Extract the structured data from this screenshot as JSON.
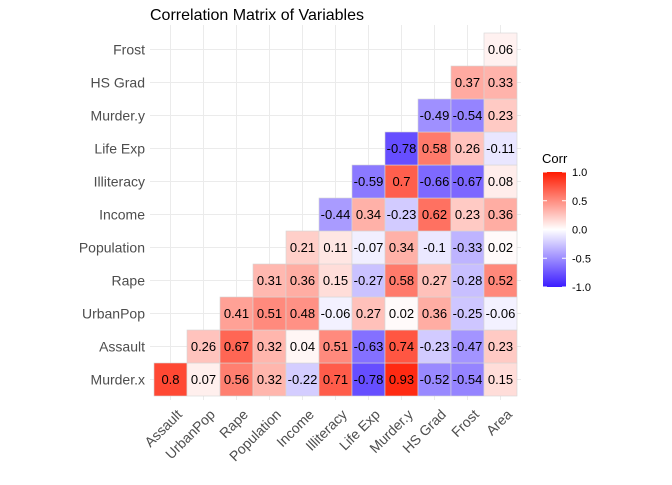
{
  "chart_data": {
    "type": "heatmap",
    "title": "Correlation Matrix of Variables",
    "xlabel": "",
    "ylabel": "",
    "x_categories": [
      "Assault",
      "UrbanPop",
      "Rape",
      "Population",
      "Income",
      "Illiteracy",
      "Life Exp",
      "Murder.y",
      "HS Grad",
      "Frost",
      "Area"
    ],
    "y_categories": [
      "Murder.x",
      "Assault",
      "UrbanPop",
      "Rape",
      "Population",
      "Income",
      "Illiteracy",
      "Life Exp",
      "Murder.y",
      "HS Grad",
      "Frost"
    ],
    "value_rows": [
      [
        0.8,
        0.07,
        0.56,
        0.32,
        -0.22,
        0.71,
        -0.78,
        0.93,
        -0.52,
        -0.54,
        0.15
      ],
      [
        null,
        0.26,
        0.67,
        0.32,
        0.04,
        0.51,
        -0.63,
        0.74,
        -0.23,
        -0.47,
        0.23
      ],
      [
        null,
        null,
        0.41,
        0.51,
        0.48,
        -0.06,
        0.27,
        0.02,
        0.36,
        -0.25,
        -0.06
      ],
      [
        null,
        null,
        null,
        0.31,
        0.36,
        0.15,
        -0.27,
        0.58,
        0.27,
        -0.28,
        0.52
      ],
      [
        null,
        null,
        null,
        null,
        0.21,
        0.11,
        -0.07,
        0.34,
        -0.1,
        -0.33,
        0.02
      ],
      [
        null,
        null,
        null,
        null,
        null,
        -0.44,
        0.34,
        -0.23,
        0.62,
        0.23,
        0.36
      ],
      [
        null,
        null,
        null,
        null,
        null,
        null,
        -0.59,
        0.7,
        -0.66,
        -0.67,
        0.08
      ],
      [
        null,
        null,
        null,
        null,
        null,
        null,
        null,
        -0.78,
        0.58,
        0.26,
        -0.11
      ],
      [
        null,
        null,
        null,
        null,
        null,
        null,
        null,
        null,
        -0.49,
        -0.54,
        0.23
      ],
      [
        null,
        null,
        null,
        null,
        null,
        null,
        null,
        null,
        null,
        0.37,
        0.33
      ],
      [
        null,
        null,
        null,
        null,
        null,
        null,
        null,
        null,
        null,
        null,
        0.06
      ]
    ],
    "legend": {
      "title": "Corr",
      "position": "right",
      "ticks": [
        1.0,
        0.5,
        0.0,
        -0.5,
        -1.0
      ],
      "tick_labels": [
        "1.0",
        "0.5",
        "0.0",
        "-0.5",
        "-1.0"
      ],
      "range": [
        -1,
        1
      ]
    },
    "colors": {
      "low": "#3b1cff",
      "mid": "#ffffff",
      "high": "#ff1a00"
    },
    "grid": true
  }
}
